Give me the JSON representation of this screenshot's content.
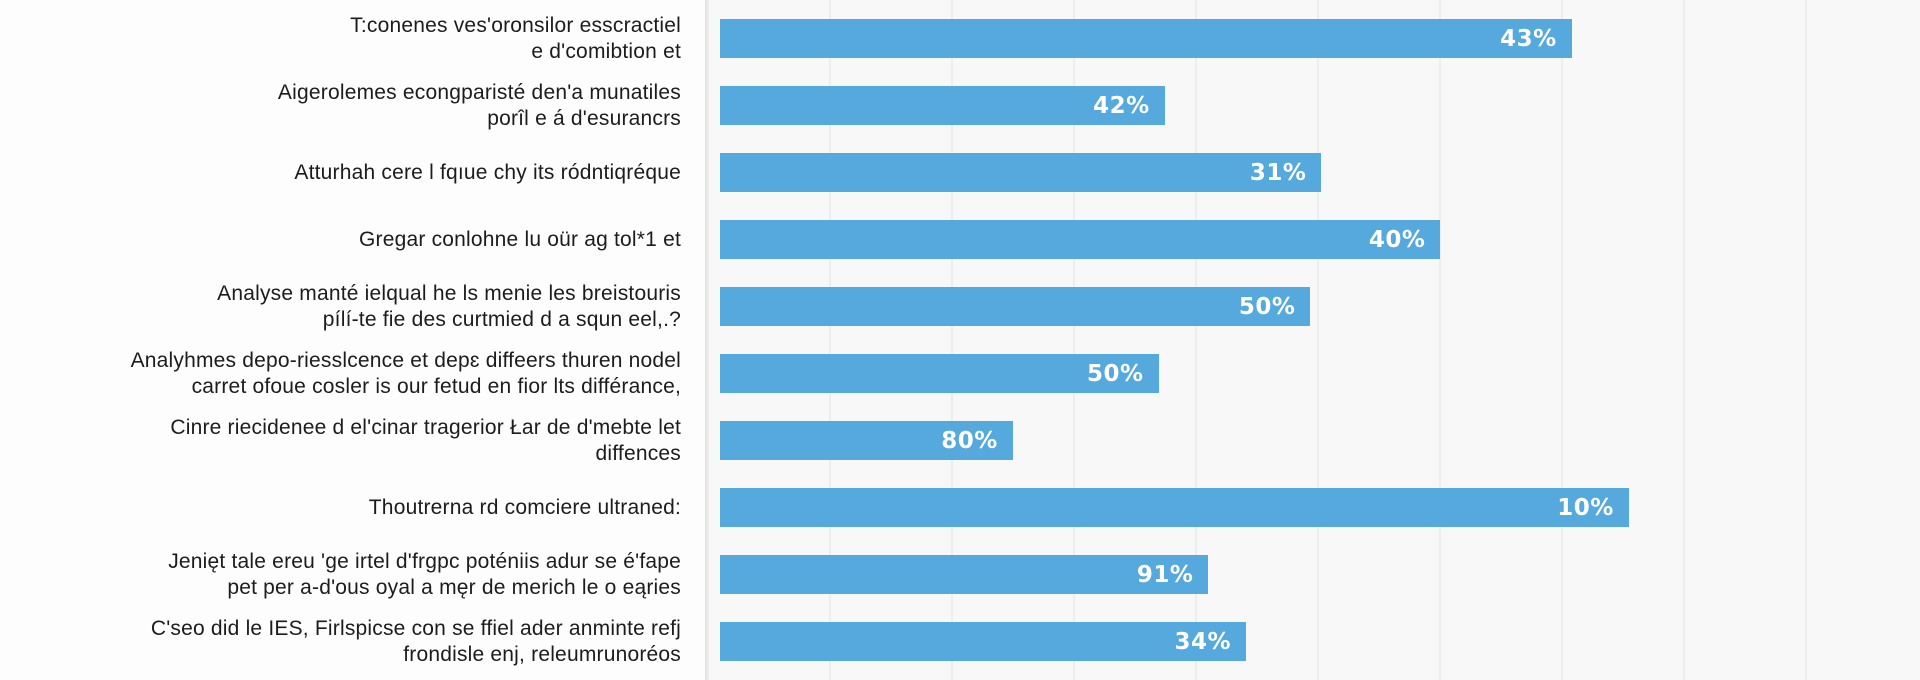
{
  "chart_data": {
    "type": "bar",
    "orientation": "horizontal",
    "title": "",
    "xlabel": "",
    "ylabel": "",
    "legend": null,
    "grid": true,
    "bar_color": "#55a9dc",
    "value_label_color": "#ffffff",
    "plot_background": "#f8f8f8",
    "gridline_color": "#ededee",
    "rows": [
      {
        "label_lines": [
          "T:conenes ves'oronsilor esscractiel",
          "e d'comibtion et"
        ],
        "value_label": "43%",
        "length_pct": 70.1
      },
      {
        "label_lines": [
          "Aigerolemes econgparisté den'a munatiles",
          "porîl e á d'esurancrs"
        ],
        "value_label": "42%",
        "length_pct": 36.6
      },
      {
        "label_lines": [
          "Atturhah cere l fqıue chy its ródntiqréque"
        ],
        "value_label": "31%",
        "length_pct": 49.5
      },
      {
        "label_lines": [
          "Gregar conlohne lu oür ag tol*1 et"
        ],
        "value_label": "40%",
        "length_pct": 59.3
      },
      {
        "label_lines": [
          "Analyse manté ielqual he ls menie les breistouris",
          "pílí-te fie des curtmied d a squn eel,.?"
        ],
        "value_label": "50%",
        "length_pct": 48.6
      },
      {
        "label_lines": [
          "Analyhmes depo-riesslcence et depɛ diffeers thuren nodel",
          "carret ofoue cosler is our fetud en fior lts différance,"
        ],
        "value_label": "50%",
        "length_pct": 36.1
      },
      {
        "label_lines": [
          "Cinre riecidenee d el'cinar tragerior Łar de d'mebte let",
          "diffences"
        ],
        "value_label": "80%",
        "length_pct": 24.1
      },
      {
        "label_lines": [
          "Thoutrerna rd comciere ultraned:"
        ],
        "value_label": "10%",
        "length_pct": 74.8
      },
      {
        "label_lines": [
          "Jenięt tale ereu 'ge irtel d'frgpc poténiis adur se é'fape",
          "pet per a-d'ous oyal a męr de merich le o eąries"
        ],
        "value_label": "91%",
        "length_pct": 40.2
      },
      {
        "label_lines": [
          "C'seo did le IES, Firlspicse con se ffiel ader anminte refj",
          "frondisle enj, releumrunoréos"
        ],
        "value_label": "34%",
        "length_pct": 43.3
      }
    ]
  }
}
